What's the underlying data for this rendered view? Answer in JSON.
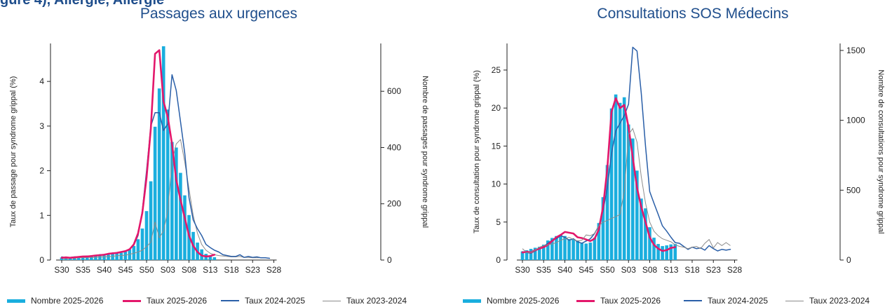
{
  "header": {
    "cut_title": "gure 4), Allergie, Allergie",
    "titles": [
      "Passages aux urgences",
      "Consultations SOS Médecins"
    ]
  },
  "colors": {
    "bars": "#1aaede",
    "taux2526": "#e3176b",
    "taux2425": "#2a5fa8",
    "taux2324": "#8c8c8c"
  },
  "legend": {
    "nombre": "Nombre 2025-2026",
    "taux2526": "Taux 2025-2026",
    "taux2425": "Taux 2024-2025",
    "taux2324": "Taux 2023-2024"
  },
  "chart_data": [
    {
      "type": "bar+line",
      "title": "Passages aux urgences",
      "ylabel_left": "Taux de passage pour syndrome grippal (%)",
      "ylabel_right": "Nombre de passages pour syndrome grippal",
      "ylim_left": [
        0,
        4.85
      ],
      "ylim_right": [
        0,
        770
      ],
      "yticks_left": [
        0,
        1,
        2,
        3,
        4
      ],
      "yticks_right": [
        0,
        200,
        400,
        600
      ],
      "x_tick_labels": [
        "S30",
        "S35",
        "S40",
        "S45",
        "S50",
        "S03",
        "S08",
        "S13",
        "S18",
        "S23",
        "S28"
      ],
      "nombre_2025_2026": [
        9,
        8,
        9,
        10,
        11,
        12,
        12,
        14,
        15,
        16,
        17,
        19,
        21,
        24,
        26,
        30,
        38,
        50,
        74,
        112,
        174,
        280,
        474,
        610,
        760,
        535,
        420,
        400,
        310,
        230,
        160,
        100,
        62,
        38,
        22,
        14,
        10
      ],
      "taux_2025_2026": [
        0.05,
        0.06,
        0.05,
        0.06,
        0.07,
        0.08,
        0.08,
        0.09,
        0.1,
        0.11,
        0.12,
        0.14,
        0.15,
        0.16,
        0.18,
        0.2,
        0.24,
        0.35,
        0.6,
        1.05,
        1.85,
        2.95,
        4.62,
        4.7,
        3.55,
        3.2,
        2.6,
        1.8,
        1.35,
        0.95,
        0.55,
        0.32,
        0.18,
        0.1,
        0.08,
        0.09,
        0.12
      ],
      "taux_2024_2025": [
        0.07,
        0.05,
        0.06,
        0.07,
        0.07,
        0.08,
        0.09,
        0.08,
        0.1,
        0.12,
        0.12,
        0.13,
        0.16,
        0.16,
        0.18,
        0.2,
        0.25,
        0.33,
        0.55,
        1.1,
        2.0,
        3.0,
        3.3,
        3.3,
        2.9,
        3.05,
        4.15,
        3.8,
        3.1,
        2.4,
        1.4,
        0.9,
        0.7,
        0.55,
        0.35,
        0.28,
        0.22,
        0.18,
        0.12,
        0.1,
        0.08,
        0.08,
        0.12,
        0.06,
        0.08,
        0.06,
        0.07,
        0.05,
        0.05,
        0.04
      ],
      "taux_2023_2024": [
        0.04,
        0.03,
        0.04,
        0.04,
        0.05,
        0.05,
        0.06,
        0.06,
        0.06,
        0.07,
        0.07,
        0.08,
        0.08,
        0.1,
        0.1,
        0.11,
        0.13,
        0.15,
        0.18,
        0.22,
        0.3,
        0.4,
        0.85,
        0.5,
        0.65,
        1.1,
        2.2,
        2.6,
        2.7,
        2.2,
        1.6,
        1.0,
        0.6,
        0.35,
        0.22,
        0.15,
        0.12,
        0.1,
        0.09,
        0.08,
        0.07,
        0.07,
        0.08,
        0.06,
        0.06,
        0.05,
        0.05,
        0.05,
        0.05,
        0.04
      ]
    },
    {
      "type": "bar+line",
      "title": "Consultations SOS Médecins",
      "ylabel_left": "Taux de consultation pour syndrome grippal (%)",
      "ylabel_right": "Nombre de consultations pour syndrome grippal",
      "ylim_left": [
        0,
        28.5
      ],
      "ylim_right": [
        0,
        1550
      ],
      "yticks_left": [
        0,
        5,
        10,
        15,
        20,
        25
      ],
      "yticks_right": [
        0,
        500,
        1000,
        1500
      ],
      "x_tick_labels": [
        "S30",
        "S35",
        "S40",
        "S45",
        "S50",
        "S03",
        "S08",
        "S13",
        "S18",
        "S23",
        "S28"
      ],
      "nombre_2025_2026": [
        62,
        70,
        80,
        88,
        95,
        110,
        140,
        158,
        172,
        180,
        172,
        150,
        148,
        140,
        120,
        118,
        125,
        160,
        265,
        450,
        680,
        1085,
        1185,
        1125,
        1165,
        970,
        870,
        640,
        440,
        370,
        235,
        160,
        115,
        100,
        105,
        112,
        115
      ],
      "taux_2025_2026": [
        1.0,
        1.1,
        1.0,
        1.3,
        1.5,
        1.7,
        2.0,
        2.5,
        3.0,
        3.3,
        3.7,
        3.6,
        3.5,
        3.0,
        2.9,
        2.7,
        2.5,
        2.8,
        4.0,
        7.0,
        12.0,
        19.5,
        21.3,
        20.0,
        20.4,
        17.5,
        13.5,
        9.5,
        7.0,
        5.0,
        3.0,
        2.0,
        1.5,
        1.2,
        1.3,
        1.6,
        1.7
      ],
      "taux_2024_2025": [
        1.1,
        1.0,
        0.9,
        1.2,
        1.5,
        1.8,
        2.2,
        2.6,
        2.8,
        3.2,
        3.0,
        2.6,
        2.8,
        2.4,
        2.2,
        2.5,
        2.8,
        3.5,
        4.5,
        6.5,
        9.5,
        14.0,
        17.0,
        18.0,
        19.0,
        20.5,
        28.0,
        27.5,
        22.0,
        15.0,
        9.0,
        7.5,
        6.0,
        4.5,
        3.8,
        3.0,
        2.3,
        2.2,
        1.8,
        1.4,
        1.7,
        1.5,
        1.6,
        1.3,
        1.9,
        1.5,
        1.2,
        1.4,
        1.3,
        1.4
      ]
    }
  ]
}
